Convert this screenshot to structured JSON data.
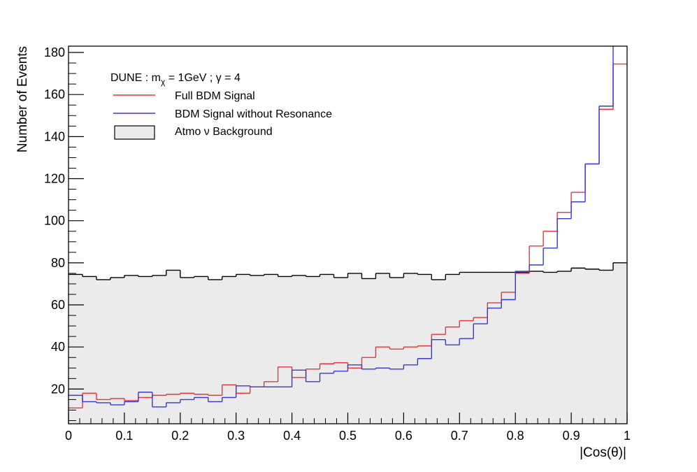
{
  "chart_data": {
    "type": "histogram",
    "xlabel": "|Cos(θ)|",
    "ylabel": "Number of Events",
    "xlim": [
      0,
      1
    ],
    "ylim": [
      3.5,
      183
    ],
    "x_ticks": [
      0,
      0.1,
      0.2,
      0.3,
      0.4,
      0.5,
      0.6,
      0.7,
      0.8,
      0.9,
      1
    ],
    "x_tick_labels": [
      "0",
      "0.1",
      "0.2",
      "0.3",
      "0.4",
      "0.5",
      "0.6",
      "0.7",
      "0.8",
      "0.9",
      "1"
    ],
    "y_ticks": [
      20,
      40,
      60,
      80,
      100,
      120,
      140,
      160,
      180
    ],
    "y_tick_labels": [
      "20",
      "40",
      "60",
      "80",
      "100",
      "120",
      "140",
      "160",
      "180"
    ],
    "bin_edges": [
      0,
      0.025,
      0.05,
      0.075,
      0.1,
      0.125,
      0.15,
      0.175,
      0.2,
      0.225,
      0.25,
      0.275,
      0.3,
      0.325,
      0.35,
      0.375,
      0.4,
      0.425,
      0.45,
      0.475,
      0.5,
      0.525,
      0.55,
      0.575,
      0.6,
      0.625,
      0.65,
      0.675,
      0.7,
      0.725,
      0.75,
      0.775,
      0.8,
      0.825,
      0.85,
      0.875,
      0.9,
      0.925,
      0.95,
      0.975,
      1
    ],
    "legend_header": {
      "prefix": "DUNE :   m",
      "subscript": "χ",
      "suffix": " = 1GeV  ; γ = 4"
    },
    "series": [
      {
        "name": "Full BDM Signal",
        "color": "#e8333a",
        "style": "step",
        "values": [
          11,
          18,
          15,
          15.5,
          14.5,
          16,
          17,
          17.5,
          18,
          17.5,
          17,
          22,
          18,
          21,
          23.5,
          30.5,
          25.5,
          29.5,
          32,
          32.5,
          30,
          35,
          40,
          39,
          40,
          40.5,
          46,
          49.5,
          52.5,
          54,
          61,
          66,
          75,
          88,
          95,
          104,
          113.5,
          127,
          153,
          174.5
        ]
      },
      {
        "name": "BDM Signal without Resonance",
        "color": "#3535e6",
        "style": "step",
        "values": [
          17,
          14,
          13.5,
          12.5,
          14,
          18.5,
          11.5,
          13.5,
          15,
          16,
          14,
          16,
          21.5,
          21,
          21,
          21,
          29,
          23.5,
          27.5,
          28.5,
          31.5,
          29.5,
          30,
          29.5,
          31.5,
          34.5,
          43.5,
          41,
          44,
          51,
          58.5,
          62.5,
          76,
          79,
          87,
          101,
          109,
          127,
          154.5,
          190
        ]
      },
      {
        "name": "Atmo ν Background",
        "color": "#000000",
        "fill": "#ebebeb",
        "style": "filled-step",
        "values": [
          74.5,
          73.5,
          72,
          73,
          74,
          73.5,
          74,
          76.5,
          73,
          73.5,
          72,
          73.5,
          74.5,
          74,
          74.5,
          73.5,
          74,
          73.5,
          74.5,
          73,
          75,
          72.5,
          75,
          73,
          75,
          74.5,
          72,
          74.5,
          75.5,
          75.5,
          75.5,
          75.5,
          75.5,
          76,
          75.5,
          76,
          77.5,
          77,
          76.5,
          80
        ]
      }
    ]
  }
}
